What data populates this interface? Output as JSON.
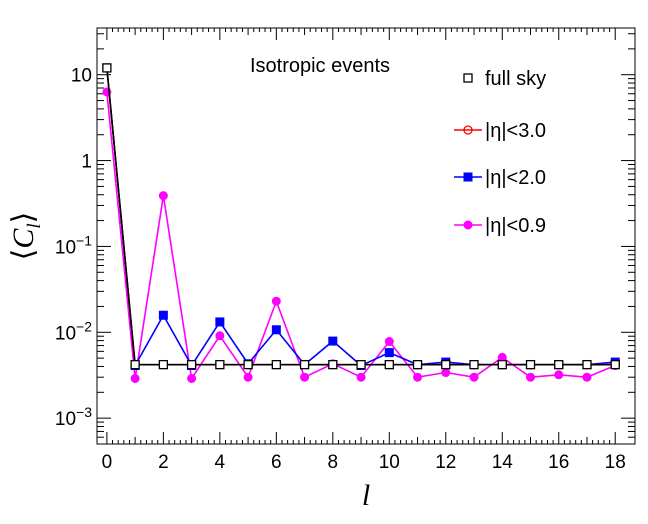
{
  "chart_data": {
    "type": "line",
    "title": "Isotropic events",
    "xlabel": "l",
    "ylabel": "⟨C_l⟩",
    "ylabel_main": "C",
    "ylabel_sub": "l",
    "xlim": [
      -0.35,
      18.7
    ],
    "ylim": [
      0.0005,
      35
    ],
    "yscale": "log",
    "grid": false,
    "legend_position": "top-right",
    "x_ticks": [
      0,
      2,
      4,
      6,
      8,
      10,
      12,
      14,
      16,
      18
    ],
    "y_ticks": [
      {
        "value": 10,
        "base": "10",
        "exp": ""
      },
      {
        "value": 1,
        "base": "1",
        "exp": ""
      },
      {
        "value": 0.1,
        "base": "10",
        "exp": "−1"
      },
      {
        "value": 0.01,
        "base": "10",
        "exp": "−2"
      },
      {
        "value": 0.001,
        "base": "10",
        "exp": "−3"
      }
    ],
    "x": [
      0,
      1,
      2,
      3,
      4,
      5,
      6,
      7,
      8,
      9,
      10,
      11,
      12,
      13,
      14,
      15,
      16,
      17,
      18
    ],
    "series": [
      {
        "name": "full sky",
        "color": "#000000",
        "marker": "open-square",
        "values": [
          12,
          0.0042,
          0.0042,
          0.0042,
          0.0042,
          0.0042,
          0.0042,
          0.0042,
          0.0042,
          0.0042,
          0.0042,
          0.0042,
          0.0042,
          0.0042,
          0.0042,
          0.0042,
          0.0042,
          0.0042,
          0.0042
        ]
      },
      {
        "name": "|η|<3.0",
        "color": "#ff0000",
        "marker": "open-circle",
        "values": [
          12,
          0.0042,
          0.0042,
          0.0042,
          0.0042,
          0.0042,
          0.0042,
          0.0042,
          0.0042,
          0.0042,
          0.0042,
          0.0042,
          0.0042,
          0.0042,
          0.0042,
          0.0042,
          0.0042,
          0.0042,
          0.0042
        ]
      },
      {
        "name": "|η|<2.0",
        "color": "#0000ff",
        "marker": "filled-square",
        "values": [
          12,
          0.0041,
          0.0158,
          0.0041,
          0.0132,
          0.0043,
          0.0107,
          0.0042,
          0.0079,
          0.0041,
          0.0058,
          0.0042,
          0.0045,
          0.0042,
          0.0042,
          0.0042,
          0.0042,
          0.0042,
          0.0045
        ]
      },
      {
        "name": "|η|<0.9",
        "color": "#ff00ff",
        "marker": "filled-circle",
        "values": [
          6.3,
          0.0029,
          0.39,
          0.0029,
          0.0091,
          0.003,
          0.023,
          0.003,
          0.0043,
          0.003,
          0.0078,
          0.003,
          0.0034,
          0.003,
          0.0051,
          0.003,
          0.0032,
          0.003,
          0.0041
        ]
      }
    ]
  }
}
